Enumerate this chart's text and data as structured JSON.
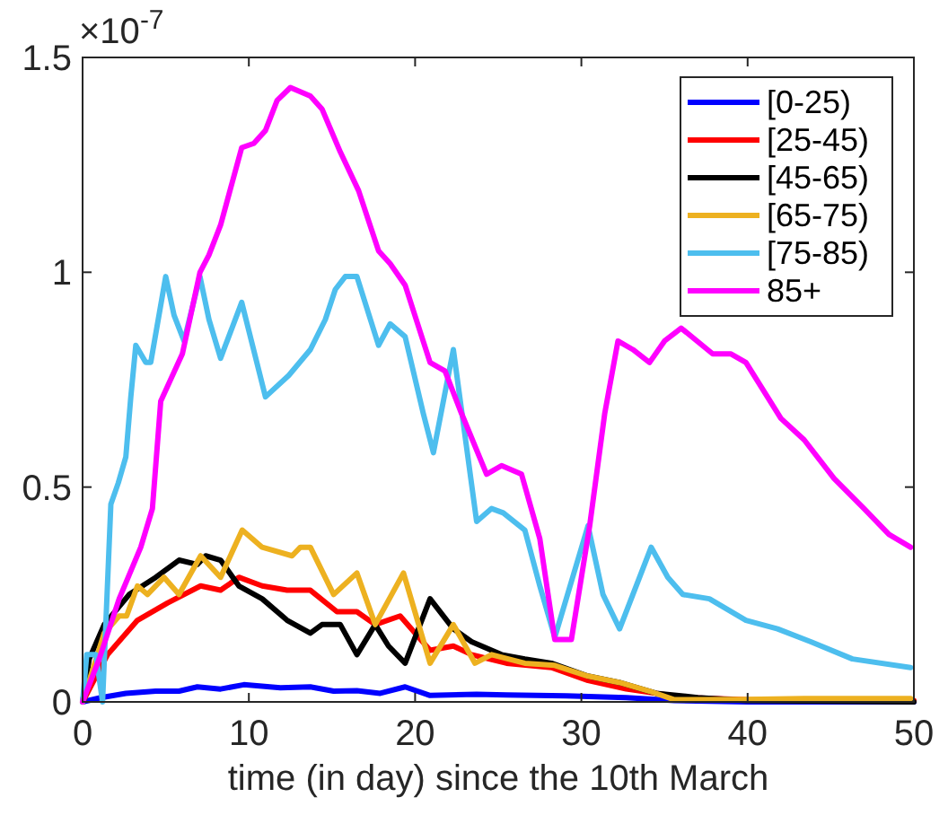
{
  "chart_data": {
    "type": "line",
    "xlabel": "time (in day) since the 10th March",
    "xlim": [
      0,
      50
    ],
    "xticks": [
      0,
      10,
      20,
      30,
      40,
      50
    ],
    "ylim": [
      0,
      1.5
    ],
    "yticks": [
      0,
      0.5,
      1,
      1.5
    ],
    "annotations": [
      "×10$^{-7}$"
    ],
    "legend": "top right",
    "grid": false,
    "line_style": "solid",
    "marker": "none",
    "series": [
      {
        "name": "[0-25)",
        "color": "#0000ff",
        "x": [
          0,
          1.1,
          2.6,
          4.4,
          5.8,
          6.9,
          8.3,
          9.7,
          11.9,
          13.7,
          15.1,
          16.5,
          17.9,
          19.4,
          20.9,
          23.7,
          25.5,
          29.1,
          32.7,
          35.6,
          40,
          50
        ],
        "values": [
          0,
          0.01,
          0.02,
          0.025,
          0.025,
          0.035,
          0.03,
          0.04,
          0.033,
          0.035,
          0.025,
          0.026,
          0.02,
          0.035,
          0.015,
          0.018,
          0.016,
          0.014,
          0.01,
          0.003,
          0,
          0
        ]
      },
      {
        "name": "[25-45)",
        "color": "#ff0000",
        "x": [
          0,
          1.5,
          3.3,
          5.1,
          7.1,
          8.3,
          9.4,
          10.8,
          12.3,
          13.7,
          15.3,
          16.5,
          17.6,
          19.1,
          20.9,
          22.3,
          23.4,
          25.5,
          28.2,
          30.4,
          32.7,
          36.3,
          39.9,
          50
        ],
        "values": [
          0,
          0.11,
          0.19,
          0.23,
          0.27,
          0.26,
          0.29,
          0.27,
          0.26,
          0.26,
          0.21,
          0.21,
          0.18,
          0.2,
          0.12,
          0.13,
          0.11,
          0.09,
          0.08,
          0.05,
          0.03,
          0.01,
          0.005,
          0.003
        ]
      },
      {
        "name": "[45-65)",
        "color": "#000000",
        "x": [
          0,
          0.4,
          1.3,
          2.8,
          4.4,
          5.8,
          6.9,
          7.4,
          8.3,
          9.4,
          10.8,
          12.3,
          13.7,
          14.4,
          15.5,
          16.5,
          17.6,
          18.4,
          19.4,
          20.9,
          22.3,
          23.4,
          25.2,
          26.6,
          28.2,
          30.4,
          32.3,
          34.5,
          37,
          39.9,
          50
        ],
        "values": [
          0,
          0.1,
          0.18,
          0.25,
          0.29,
          0.33,
          0.32,
          0.34,
          0.33,
          0.27,
          0.24,
          0.19,
          0.16,
          0.18,
          0.18,
          0.11,
          0.18,
          0.13,
          0.09,
          0.24,
          0.17,
          0.14,
          0.11,
          0.1,
          0.09,
          0.06,
          0.045,
          0.02,
          0.01,
          0.003,
          0
        ]
      },
      {
        "name": "[65-75)",
        "color": "#edb120",
        "x": [
          0,
          1.3,
          2.2,
          2.65,
          3.3,
          3.9,
          4.9,
          5.8,
          7.1,
          8.3,
          9.6,
          10.8,
          12.6,
          13.1,
          13.7,
          15.1,
          16.5,
          17.6,
          19.3,
          20.9,
          22.3,
          23.6,
          24.6,
          26.6,
          28.4,
          30.4,
          32.3,
          34.1,
          35.6,
          39.9,
          43.4,
          49.8
        ],
        "values": [
          0,
          0.16,
          0.2,
          0.2,
          0.27,
          0.25,
          0.29,
          0.25,
          0.34,
          0.29,
          0.4,
          0.36,
          0.34,
          0.36,
          0.36,
          0.25,
          0.3,
          0.18,
          0.3,
          0.09,
          0.18,
          0.09,
          0.11,
          0.09,
          0.085,
          0.06,
          0.045,
          0.025,
          0.005,
          0.006,
          0.008,
          0.008
        ]
      },
      {
        "name": "[75-85)",
        "color": "#4dbeee",
        "x": [
          0,
          0.25,
          0.8,
          1.2,
          1.7,
          2.15,
          2.6,
          2.9,
          3.2,
          3.8,
          4.1,
          5,
          5.5,
          6.1,
          7.06,
          7.6,
          8.3,
          9.57,
          11,
          12.4,
          13.7,
          14.6,
          15.2,
          15.8,
          16.5,
          17.8,
          18.5,
          19.4,
          20.5,
          21.1,
          22.3,
          23.7,
          24.6,
          25.3,
          26.6,
          27.5,
          28.4,
          30.4,
          31.3,
          32.3,
          34.2,
          35.2,
          36.1,
          37.7,
          39.9,
          41.8,
          43.8,
          46.3,
          49.8
        ],
        "values": [
          0,
          0.11,
          0.11,
          0,
          0.46,
          0.51,
          0.57,
          0.71,
          0.83,
          0.79,
          0.79,
          0.99,
          0.9,
          0.84,
          0.99,
          0.89,
          0.8,
          0.93,
          0.71,
          0.76,
          0.82,
          0.89,
          0.96,
          0.99,
          0.99,
          0.83,
          0.88,
          0.85,
          0.67,
          0.58,
          0.82,
          0.42,
          0.45,
          0.44,
          0.4,
          0.27,
          0.15,
          0.41,
          0.25,
          0.17,
          0.36,
          0.29,
          0.25,
          0.24,
          0.19,
          0.17,
          0.14,
          0.1,
          0.08
        ]
      },
      {
        "name": "85+",
        "color": "#ff00ff",
        "x": [
          0,
          1,
          2.2,
          3.5,
          4.2,
          4.7,
          6,
          7.06,
          7.6,
          8.3,
          9.57,
          10.3,
          11,
          11.7,
          12.5,
          13.7,
          14.4,
          15.5,
          16.6,
          17.8,
          18.5,
          19.4,
          20.9,
          21.8,
          22.7,
          24.3,
          25.2,
          26.4,
          27.5,
          28.4,
          29.4,
          30.5,
          31.4,
          32.2,
          33.1,
          34.1,
          35,
          36,
          37.9,
          39,
          39.9,
          42,
          43.4,
          45.2,
          47,
          48.5,
          49.8
        ],
        "values": [
          0,
          0.1,
          0.24,
          0.36,
          0.45,
          0.7,
          0.81,
          1,
          1.04,
          1.11,
          1.29,
          1.3,
          1.33,
          1.4,
          1.43,
          1.41,
          1.38,
          1.28,
          1.19,
          1.05,
          1.02,
          0.97,
          0.79,
          0.77,
          0.68,
          0.53,
          0.55,
          0.53,
          0.38,
          0.145,
          0.145,
          0.41,
          0.67,
          0.84,
          0.82,
          0.79,
          0.84,
          0.87,
          0.81,
          0.81,
          0.79,
          0.66,
          0.61,
          0.52,
          0.45,
          0.39,
          0.36
        ]
      }
    ]
  }
}
